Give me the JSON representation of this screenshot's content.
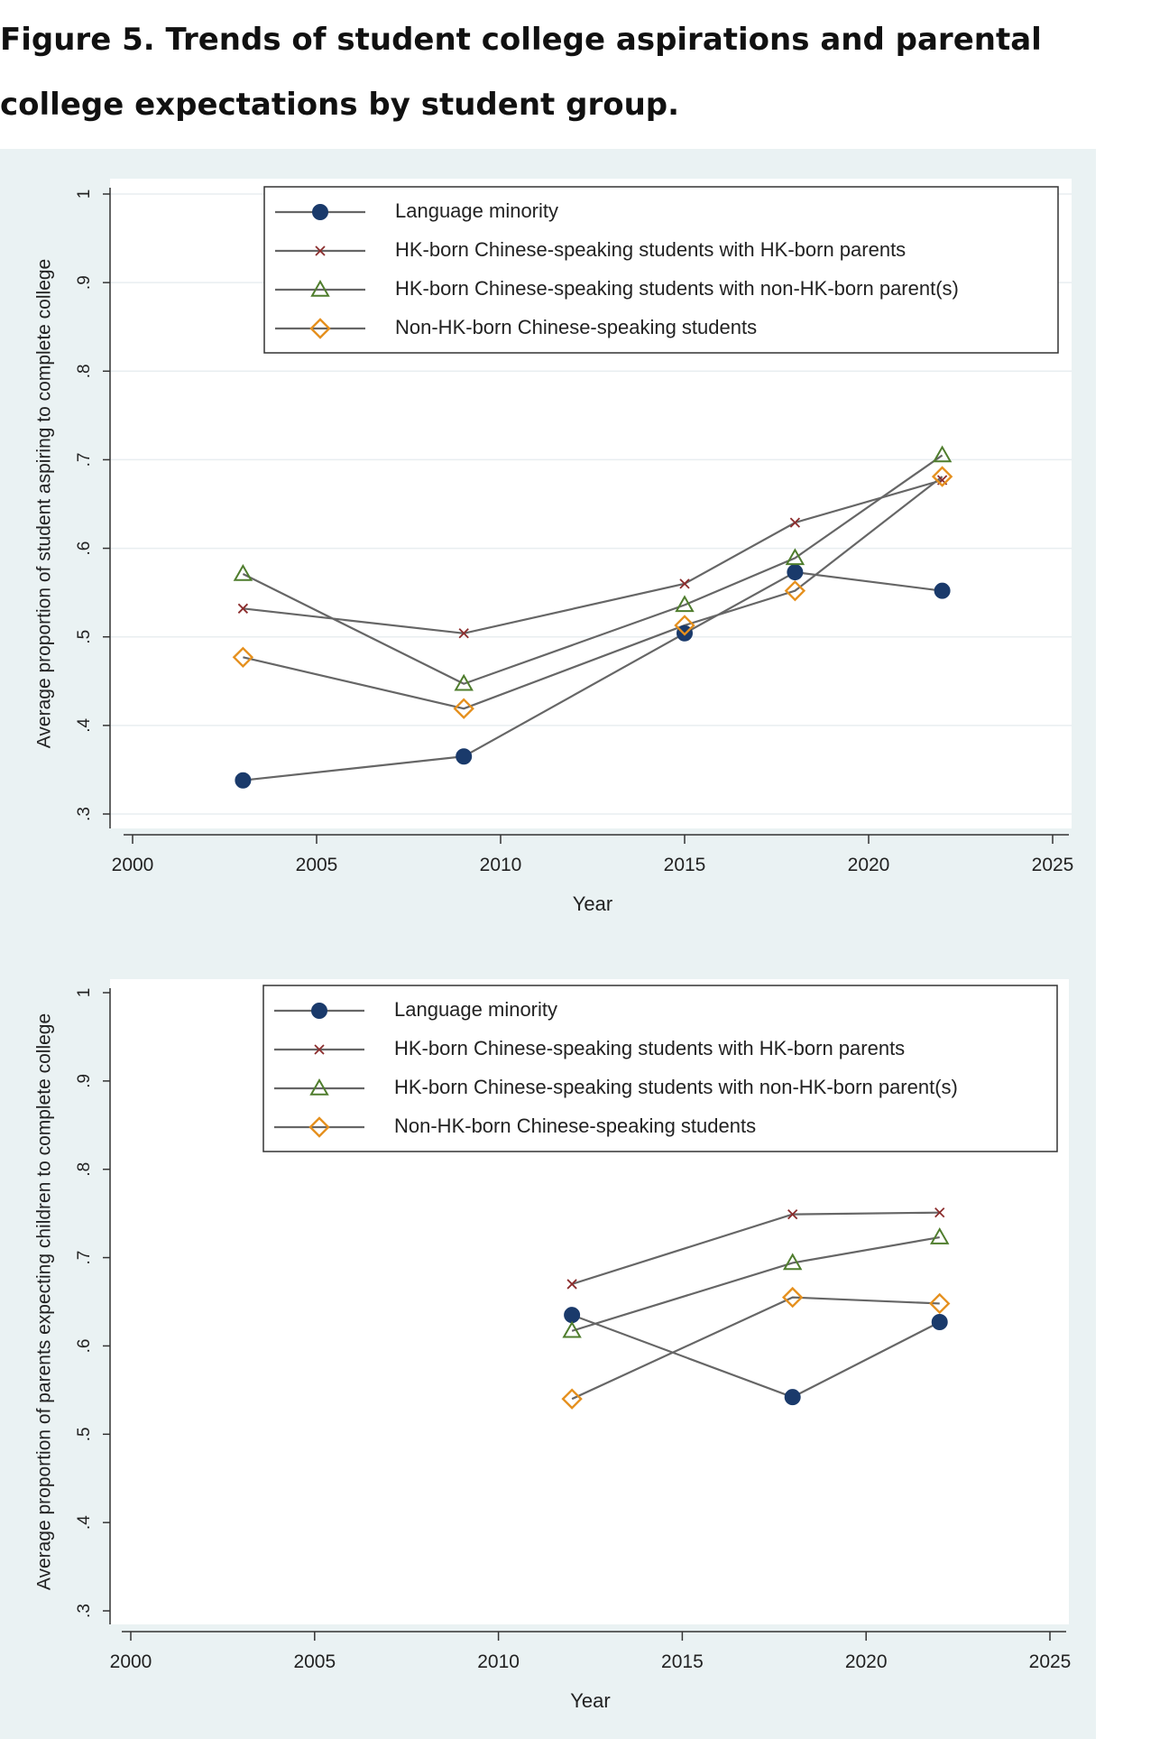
{
  "figure_title": "Figure 5. Trends of student college aspirations and parental college expectations by student group.",
  "chart_data": [
    {
      "type": "line",
      "title": "",
      "xlabel": "Year",
      "ylabel": "Average proportion of student aspiring to complete college",
      "xlim": [
        2000,
        2025
      ],
      "ylim": [
        0.3,
        1.0
      ],
      "x_ticks": [
        "2000",
        "2005",
        "2010",
        "2015",
        "2020",
        "2025"
      ],
      "y_ticks": [
        ".3",
        ".4",
        ".5",
        ".6",
        ".7",
        ".8",
        ".9",
        "1"
      ],
      "grid": true,
      "legend_position": "top",
      "series": [
        {
          "name": "Language minority",
          "marker": "circle",
          "color": "#1a3a6b",
          "x": [
            2003,
            2009,
            2015,
            2018,
            2022
          ],
          "y": [
            0.338,
            0.365,
            0.504,
            0.573,
            0.552
          ]
        },
        {
          "name": "HK-born Chinese-speaking students with HK-born parents",
          "marker": "x",
          "color": "#8b2c2c",
          "x": [
            2003,
            2009,
            2015,
            2018,
            2022
          ],
          "y": [
            0.532,
            0.504,
            0.56,
            0.629,
            0.677
          ]
        },
        {
          "name": "HK-born Chinese-speaking students with non-HK-born parent(s)",
          "marker": "triangle",
          "color": "#4f7d2d",
          "x": [
            2003,
            2009,
            2015,
            2018,
            2022
          ],
          "y": [
            0.571,
            0.447,
            0.536,
            0.589,
            0.705
          ]
        },
        {
          "name": "Non-HK-born Chinese-speaking students",
          "marker": "diamond",
          "color": "#e5901e",
          "x": [
            2003,
            2009,
            2015,
            2018,
            2022
          ],
          "y": [
            0.477,
            0.419,
            0.513,
            0.552,
            0.681
          ]
        }
      ]
    },
    {
      "type": "line",
      "title": "",
      "xlabel": "Year",
      "ylabel": "Average proportion of parents expecting children to complete college",
      "xlim": [
        2000,
        2025
      ],
      "ylim": [
        0.3,
        1.0
      ],
      "x_ticks": [
        "2000",
        "2005",
        "2010",
        "2015",
        "2020",
        "2025"
      ],
      "y_ticks": [
        ".3",
        ".4",
        ".5",
        ".6",
        ".7",
        ".8",
        ".9",
        "1"
      ],
      "grid": false,
      "legend_position": "top",
      "series": [
        {
          "name": "Language minority",
          "marker": "circle",
          "color": "#1a3a6b",
          "x": [
            2012,
            2018,
            2022
          ],
          "y": [
            0.635,
            0.542,
            0.627
          ]
        },
        {
          "name": "HK-born Chinese-speaking students with HK-born parents",
          "marker": "x",
          "color": "#8b2c2c",
          "x": [
            2012,
            2018,
            2022
          ],
          "y": [
            0.67,
            0.749,
            0.751
          ]
        },
        {
          "name": "HK-born Chinese-speaking students with non-HK-born parent(s)",
          "marker": "triangle",
          "color": "#4f7d2d",
          "x": [
            2012,
            2018,
            2022
          ],
          "y": [
            0.617,
            0.694,
            0.723
          ]
        },
        {
          "name": "Non-HK-born Chinese-speaking students",
          "marker": "diamond",
          "color": "#e5901e",
          "x": [
            2012,
            2018,
            2022
          ],
          "y": [
            0.54,
            0.655,
            0.648
          ]
        }
      ]
    }
  ]
}
